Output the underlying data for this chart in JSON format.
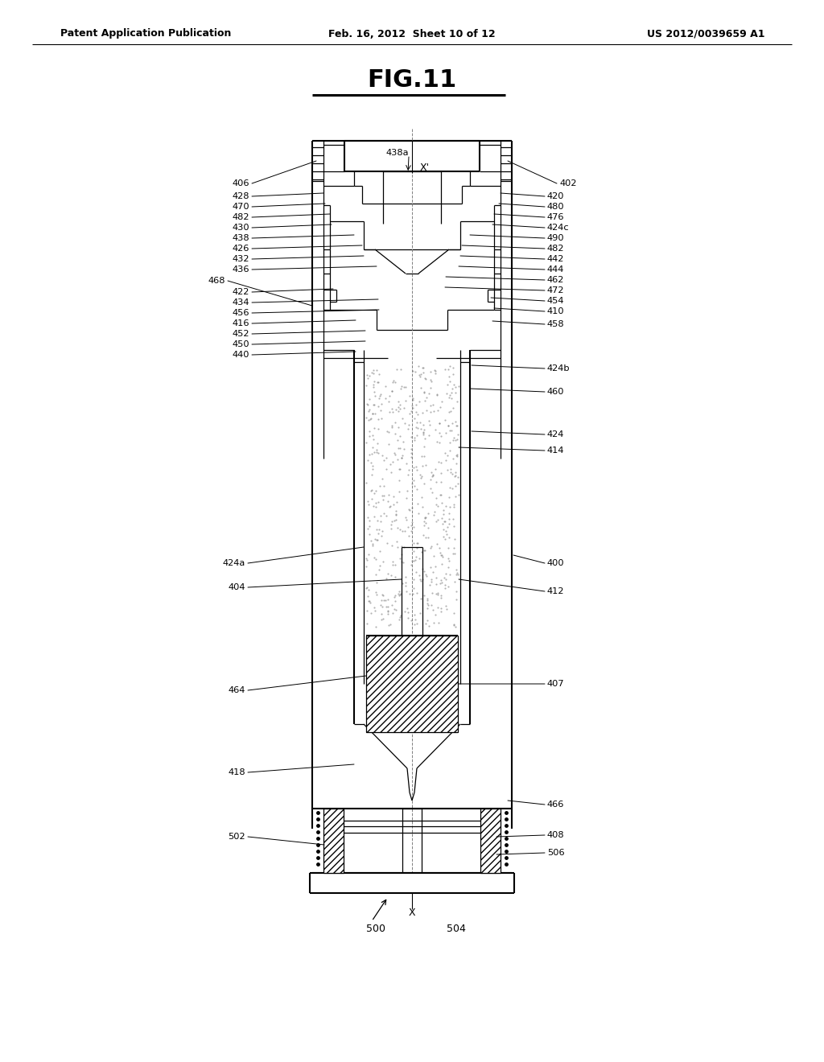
{
  "title": "FIG.11",
  "header_left": "Patent Application Publication",
  "header_center": "Feb. 16, 2012  Sheet 10 of 12",
  "header_right": "US 2012/0039659 A1",
  "bg_color": "#ffffff",
  "line_color": "#000000",
  "fig_width": 10.24,
  "fig_height": 13.2
}
